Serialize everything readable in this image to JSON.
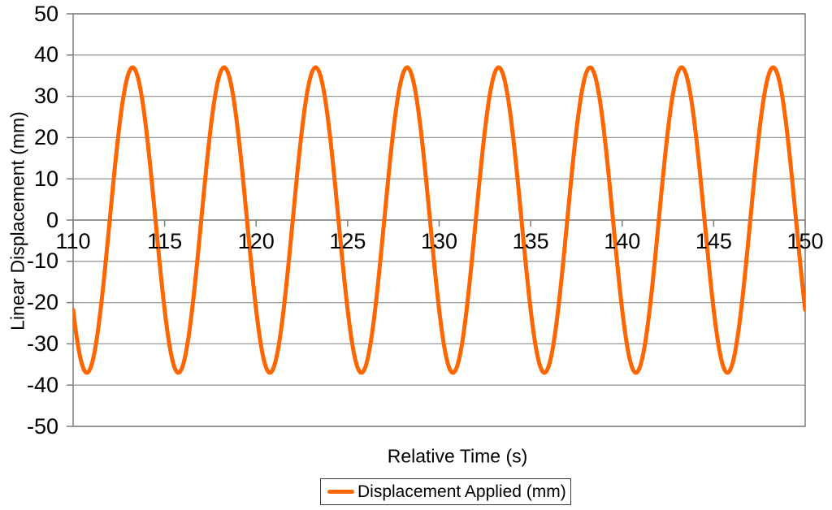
{
  "chart_data": {
    "type": "line",
    "title": "",
    "xlabel": "Relative Time (s)",
    "ylabel": "Linear Displacement (mm)",
    "xlim": [
      110,
      150
    ],
    "ylim": [
      -50,
      50
    ],
    "xticks": [
      110,
      115,
      120,
      125,
      130,
      135,
      140,
      145,
      150
    ],
    "yticks": [
      50,
      40,
      30,
      20,
      10,
      0,
      -10,
      -20,
      -30,
      -40,
      -50
    ],
    "grid": "horizontal-only",
    "legend": {
      "position": "bottom-center",
      "border": true
    },
    "series": [
      {
        "name": "Displacement Applied (mm)",
        "color": "#FF6600",
        "waveform": "sine",
        "amplitude": 37,
        "period": 5,
        "rising_zero_crossing_x": 112,
        "x_start": 110,
        "x_end": 150,
        "cycles_shown": 8,
        "value_at_edges": -21.8,
        "peak_x_values": [
          113.25,
          118.25,
          123.25,
          128.25,
          133.25,
          138.25,
          143.25,
          148.25
        ],
        "trough_x_values": [
          110.75,
          115.75,
          120.75,
          125.75,
          130.75,
          135.75,
          140.75,
          145.75
        ]
      }
    ],
    "colors": {
      "series": "#FF6600",
      "gridline": "#9b9b9b",
      "axis": "#7d7d7d",
      "text": "#000000",
      "background": "#ffffff"
    }
  }
}
